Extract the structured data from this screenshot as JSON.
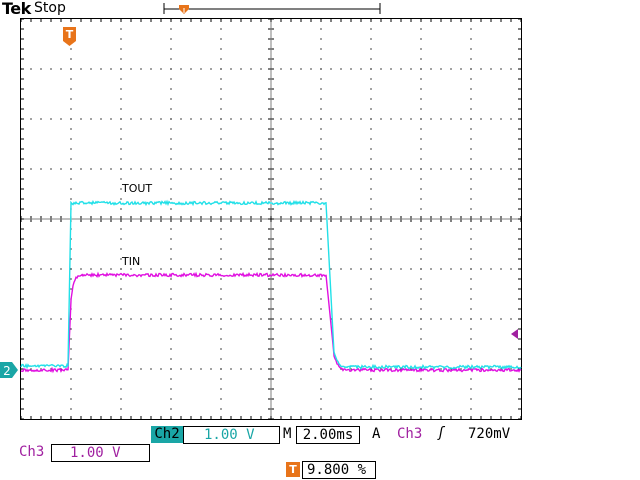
{
  "header": {
    "brand": "Tek",
    "acquisition_state": "Stop"
  },
  "trace_labels": {
    "top": "TOUT",
    "bottom": "TIN"
  },
  "ground_marker": {
    "channel": "2"
  },
  "colors": {
    "ch2": "#1aa6a6",
    "ch2_trace": "#22e0e8",
    "ch3": "#a020a0",
    "ch3_trace": "#e010e0",
    "trigger": "#e8741a",
    "grid": "#000000"
  },
  "readouts": {
    "ch2_label": "Ch2",
    "ch2_scale": "1.00 V",
    "timebase_label": "M",
    "timebase": "2.00ms",
    "trigger_mode": "A",
    "trigger_source": "Ch3",
    "trigger_slope_glyph": "ʃ",
    "trigger_level": "720mV",
    "ch3_label": "Ch3",
    "ch3_scale": "1.00 V",
    "trigger_badge": "T",
    "trigger_position": "9.800 %"
  },
  "icons": {
    "trigger_marker": "trigger-marker-icon",
    "trigger_level_arrow": "trigger-level-arrow-icon",
    "ground_marker": "ground-marker-icon",
    "record_bar": "record-position-bar-icon"
  }
}
